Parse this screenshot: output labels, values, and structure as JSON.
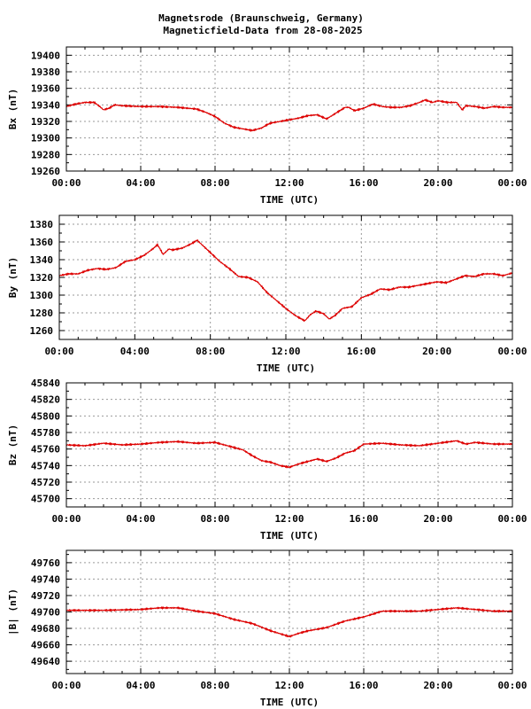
{
  "title": {
    "line1": "Magnetsrode (Braunschweig, Germany)",
    "line2": "Magneticfield-Data from 28-08-2025"
  },
  "colors": {
    "series": "#dd0000",
    "grid": "#9a9a9a",
    "axis": "#000000"
  },
  "chart_data": [
    {
      "type": "line",
      "id": "bx",
      "ylabel": "Bx (nT)",
      "xlabel": "TIME (UTC)",
      "xlim": [
        0,
        24
      ],
      "x_ticks": [
        "00:00",
        "04:00",
        "08:00",
        "12:00",
        "16:00",
        "20:00",
        "00:00"
      ],
      "ylim": [
        19260,
        19410
      ],
      "y_ticks": [
        19260,
        19280,
        19300,
        19320,
        19340,
        19360,
        19380,
        19400
      ],
      "grid": true,
      "series": [
        {
          "points": [
            [
              0,
              19338
            ],
            [
              0.5,
              19341
            ],
            [
              1,
              19343
            ],
            [
              1.5,
              19343
            ],
            [
              1.8,
              19338
            ],
            [
              2,
              19334
            ],
            [
              2.3,
              19336
            ],
            [
              2.6,
              19340
            ],
            [
              3,
              19339
            ],
            [
              4,
              19338
            ],
            [
              5,
              19338
            ],
            [
              6,
              19337
            ],
            [
              6.5,
              19336
            ],
            [
              7,
              19335
            ],
            [
              7.5,
              19331
            ],
            [
              8,
              19326
            ],
            [
              8.5,
              19318
            ],
            [
              9,
              19313
            ],
            [
              9.5,
              19311
            ],
            [
              10,
              19309
            ],
            [
              10.5,
              19312
            ],
            [
              10.8,
              19316
            ],
            [
              11,
              19318
            ],
            [
              11.5,
              19320
            ],
            [
              12,
              19322
            ],
            [
              12.5,
              19324
            ],
            [
              13,
              19327
            ],
            [
              13.5,
              19328
            ],
            [
              13.8,
              19325
            ],
            [
              14,
              19323
            ],
            [
              14.5,
              19330
            ],
            [
              15,
              19337
            ],
            [
              15.2,
              19337
            ],
            [
              15.5,
              19333
            ],
            [
              16,
              19336
            ],
            [
              16.5,
              19341
            ],
            [
              17,
              19338
            ],
            [
              17.5,
              19337
            ],
            [
              18,
              19337
            ],
            [
              18.5,
              19339
            ],
            [
              19,
              19343
            ],
            [
              19.3,
              19346
            ],
            [
              19.7,
              19343
            ],
            [
              20,
              19345
            ],
            [
              20.5,
              19343
            ],
            [
              21,
              19343
            ],
            [
              21.3,
              19334
            ],
            [
              21.5,
              19339
            ],
            [
              22,
              19338
            ],
            [
              22.5,
              19336
            ],
            [
              23,
              19338
            ],
            [
              23.5,
              19337
            ],
            [
              24,
              19337
            ]
          ]
        }
      ]
    },
    {
      "type": "line",
      "id": "by",
      "ylabel": "By (nT)",
      "xlabel": "TIME (UTC)",
      "xlim": [
        0,
        24
      ],
      "x_ticks": [
        "00:00",
        "04:00",
        "08:00",
        "12:00",
        "16:00",
        "20:00",
        "00:00"
      ],
      "ylim": [
        1250,
        1390
      ],
      "y_ticks": [
        1260,
        1280,
        1300,
        1320,
        1340,
        1360,
        1380
      ],
      "grid": true,
      "series": [
        {
          "points": [
            [
              0,
              1322
            ],
            [
              0.5,
              1324
            ],
            [
              1,
              1324
            ],
            [
              1.5,
              1328
            ],
            [
              2,
              1330
            ],
            [
              2.5,
              1329
            ],
            [
              3,
              1331
            ],
            [
              3.5,
              1338
            ],
            [
              4,
              1340
            ],
            [
              4.5,
              1345
            ],
            [
              5,
              1353
            ],
            [
              5.2,
              1357
            ],
            [
              5.5,
              1346
            ],
            [
              5.8,
              1352
            ],
            [
              6,
              1351
            ],
            [
              6.5,
              1353
            ],
            [
              7,
              1358
            ],
            [
              7.3,
              1362
            ],
            [
              7.6,
              1356
            ],
            [
              8,
              1348
            ],
            [
              8.5,
              1338
            ],
            [
              9,
              1330
            ],
            [
              9.5,
              1321
            ],
            [
              10,
              1320
            ],
            [
              10.5,
              1315
            ],
            [
              11,
              1303
            ],
            [
              11.5,
              1294
            ],
            [
              12,
              1285
            ],
            [
              12.5,
              1277
            ],
            [
              13,
              1271
            ],
            [
              13.3,
              1278
            ],
            [
              13.6,
              1282
            ],
            [
              14,
              1279
            ],
            [
              14.3,
              1273
            ],
            [
              14.6,
              1277
            ],
            [
              15,
              1285
            ],
            [
              15.5,
              1287
            ],
            [
              16,
              1297
            ],
            [
              16.5,
              1301
            ],
            [
              17,
              1307
            ],
            [
              17.5,
              1306
            ],
            [
              18,
              1309
            ],
            [
              18.5,
              1309
            ],
            [
              19,
              1311
            ],
            [
              19.5,
              1313
            ],
            [
              20,
              1315
            ],
            [
              20.5,
              1314
            ],
            [
              21,
              1318
            ],
            [
              21.5,
              1322
            ],
            [
              22,
              1321
            ],
            [
              22.5,
              1324
            ],
            [
              23,
              1324
            ],
            [
              23.5,
              1322
            ],
            [
              24,
              1325
            ]
          ]
        }
      ]
    },
    {
      "type": "line",
      "id": "bz",
      "ylabel": "Bz (nT)",
      "xlabel": "TIME (UTC)",
      "xlim": [
        0,
        24
      ],
      "x_ticks": [
        "00:00",
        "04:00",
        "08:00",
        "12:00",
        "16:00",
        "20:00",
        "00:00"
      ],
      "ylim": [
        45690,
        45840
      ],
      "y_ticks": [
        45700,
        45720,
        45740,
        45760,
        45780,
        45800,
        45820,
        45840
      ],
      "grid": true,
      "series": [
        {
          "points": [
            [
              0,
              45765
            ],
            [
              1,
              45764
            ],
            [
              2,
              45767
            ],
            [
              3,
              45765
            ],
            [
              4,
              45766
            ],
            [
              5,
              45768
            ],
            [
              6,
              45769
            ],
            [
              7,
              45767
            ],
            [
              8,
              45768
            ],
            [
              9,
              45762
            ],
            [
              9.5,
              45759
            ],
            [
              10,
              45752
            ],
            [
              10.5,
              45746
            ],
            [
              11,
              45744
            ],
            [
              11.5,
              45740
            ],
            [
              12,
              45738
            ],
            [
              12.5,
              45742
            ],
            [
              13,
              45745
            ],
            [
              13.5,
              45748
            ],
            [
              14,
              45745
            ],
            [
              14.5,
              45749
            ],
            [
              15,
              45755
            ],
            [
              15.5,
              45758
            ],
            [
              16,
              45766
            ],
            [
              17,
              45767
            ],
            [
              18,
              45765
            ],
            [
              19,
              45764
            ],
            [
              20,
              45767
            ],
            [
              21,
              45770
            ],
            [
              21.5,
              45766
            ],
            [
              22,
              45768
            ],
            [
              23,
              45766
            ],
            [
              24,
              45766
            ]
          ]
        }
      ]
    },
    {
      "type": "line",
      "id": "bt",
      "ylabel": "|B| (nT)",
      "xlabel": "TIME (UTC)",
      "xlim": [
        0,
        24
      ],
      "x_ticks": [
        "00:00",
        "04:00",
        "08:00",
        "12:00",
        "16:00",
        "20:00",
        "00:00"
      ],
      "ylim": [
        49625,
        49775
      ],
      "y_ticks": [
        49640,
        49660,
        49680,
        49700,
        49720,
        49740,
        49760
      ],
      "grid": true,
      "series": [
        {
          "points": [
            [
              0,
              49702
            ],
            [
              2,
              49702
            ],
            [
              4,
              49703
            ],
            [
              5,
              49705
            ],
            [
              6,
              49705
            ],
            [
              7,
              49701
            ],
            [
              8,
              49698
            ],
            [
              9,
              49691
            ],
            [
              10,
              49686
            ],
            [
              11,
              49677
            ],
            [
              12,
              49670
            ],
            [
              12.5,
              49674
            ],
            [
              13,
              49677
            ],
            [
              14,
              49681
            ],
            [
              15,
              49689
            ],
            [
              16,
              49694
            ],
            [
              17,
              49701
            ],
            [
              18,
              49701
            ],
            [
              19,
              49701
            ],
            [
              20,
              49703
            ],
            [
              21,
              49705
            ],
            [
              22,
              49703
            ],
            [
              23,
              49701
            ],
            [
              24,
              49701
            ]
          ]
        }
      ]
    }
  ]
}
